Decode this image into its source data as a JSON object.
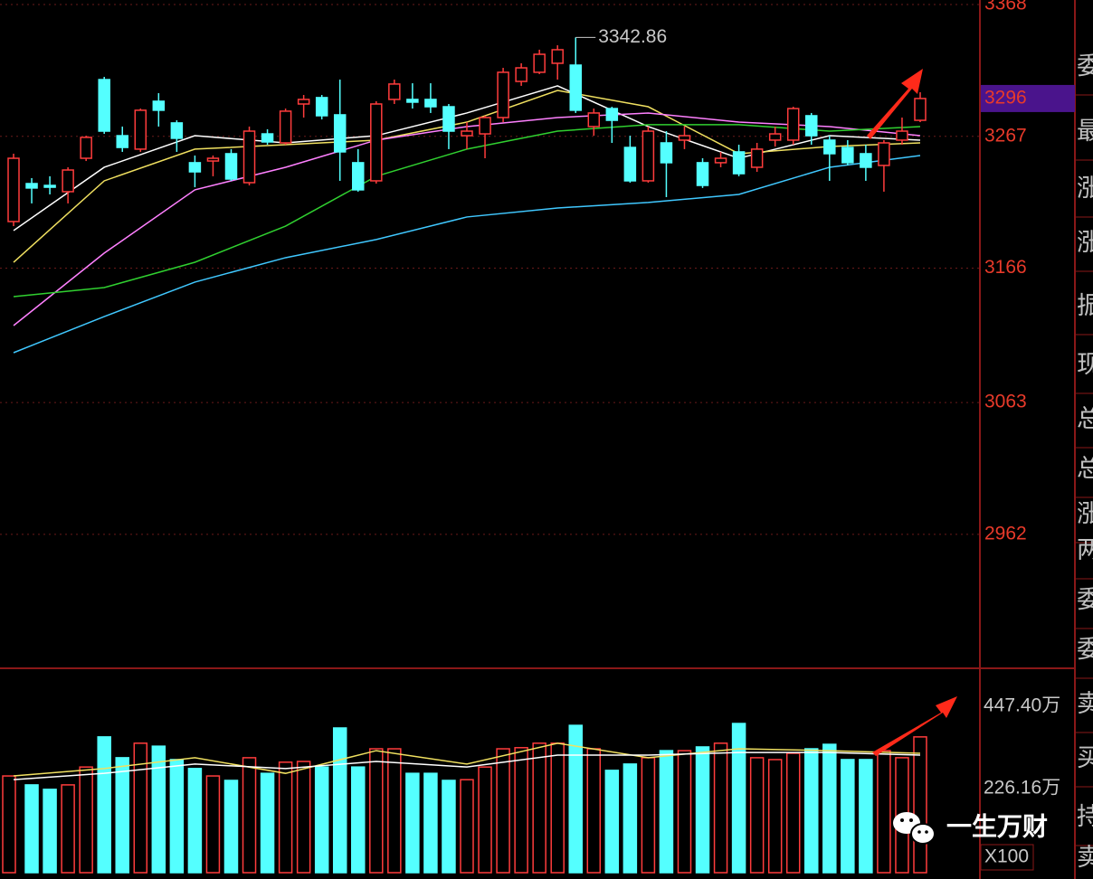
{
  "chart_data": [
    {
      "type": "candlestick",
      "open": [
        3201.7,
        3230.8,
        3229.4,
        3224.6,
        3250.2,
        3310.5,
        3267.5,
        3257.2,
        3293.9,
        3277.3,
        3246.8,
        3248.1,
        3253.7,
        3231.5,
        3268.9,
        3262.0,
        3291.8,
        3296.7,
        3283.5,
        3246.8,
        3232.9,
        3295.3,
        3295.3,
        3295.3,
        3289.7,
        3267.5,
        3268.9,
        3281.4,
        3309.1,
        3316.1,
        3323.0,
        3321.6,
        3274.5,
        3288.3,
        3258.5,
        3232.9,
        3262.0,
        3264.1,
        3246.8,
        3246.8,
        3255.1,
        3243.3,
        3264.1,
        3264.1,
        3282.8,
        3264.1,
        3258.5,
        3253.7,
        3244.7,
        3264.1,
        3279.3
      ],
      "high": [
        3253.7,
        3235.0,
        3236.4,
        3243.3,
        3267.5,
        3312.6,
        3274.5,
        3288.3,
        3300.1,
        3279.3,
        3252.3,
        3252.3,
        3257.2,
        3274.5,
        3272.4,
        3288.3,
        3298.7,
        3298.7,
        3310.5,
        3257.2,
        3293.9,
        3310.5,
        3307.7,
        3307.7,
        3291.8,
        3277.9,
        3282.8,
        3319.5,
        3323.0,
        3333.4,
        3336.8,
        3342.86,
        3288.3,
        3289.7,
        3267.5,
        3274.5,
        3271.0,
        3274.5,
        3250.2,
        3255.1,
        3260.6,
        3262.0,
        3274.5,
        3289.7,
        3284.9,
        3267.5,
        3264.1,
        3260.6,
        3264.1,
        3281.4,
        3300.8
      ],
      "low": [
        3198.2,
        3215.6,
        3222.5,
        3215.6,
        3248.1,
        3268.9,
        3255.1,
        3255.1,
        3274.5,
        3255.1,
        3228.0,
        3236.4,
        3232.9,
        3229.4,
        3260.6,
        3260.6,
        3281.4,
        3280.0,
        3232.9,
        3224.6,
        3230.8,
        3291.8,
        3288.3,
        3284.9,
        3257.2,
        3257.2,
        3250.2,
        3277.9,
        3305.7,
        3314.7,
        3310.5,
        3284.9,
        3267.5,
        3262.0,
        3231.5,
        3231.5,
        3220.4,
        3257.2,
        3227.4,
        3243.3,
        3236.4,
        3239.8,
        3259.2,
        3260.6,
        3260.6,
        3232.9,
        3244.7,
        3232.9,
        3224.6,
        3260.6,
        3277.9
      ],
      "close": [
        3250.2,
        3227.4,
        3228.0,
        3241.2,
        3266.2,
        3271.0,
        3258.5,
        3287.0,
        3287.0,
        3265.5,
        3239.8,
        3250.2,
        3234.3,
        3271.0,
        3262.7,
        3286.3,
        3295.3,
        3282.8,
        3255.1,
        3226.0,
        3291.8,
        3307.1,
        3293.2,
        3289.7,
        3271.0,
        3271.0,
        3281.4,
        3316.1,
        3319.5,
        3329.9,
        3333.4,
        3287.0,
        3284.9,
        3279.3,
        3232.9,
        3271.0,
        3246.8,
        3267.5,
        3229.4,
        3250.2,
        3238.4,
        3257.2,
        3268.9,
        3288.3,
        3267.5,
        3253.7,
        3246.8,
        3243.3,
        3262.0,
        3271.0,
        3296
      ],
      "up_color": "#ff3c3c",
      "down_color": "#54ffff",
      "ylim": [
        2860,
        3371.5
      ],
      "yticks": [
        3368,
        3267,
        3166,
        3063,
        2962
      ],
      "grid": true,
      "last_price": 3296,
      "high_annotation": 3342.86,
      "ma_x": [
        0,
        5,
        10,
        15,
        20,
        25,
        30,
        35,
        40,
        45,
        50
      ],
      "ma_lines": [
        {
          "color": "#ffffff",
          "values": [
            3194.8,
            3243.3,
            3267.5,
            3262.0,
            3267.5,
            3284.9,
            3305.7,
            3274.5,
            3250.2,
            3267.5,
            3264.1
          ]
        },
        {
          "color": "#f0e060",
          "values": [
            3170.5,
            3232.9,
            3257.2,
            3260.6,
            3264.1,
            3277.9,
            3302.2,
            3289.7,
            3253.7,
            3259.2,
            3262.0
          ]
        },
        {
          "color": "#ff80ff",
          "values": [
            3122.0,
            3177.5,
            3226.0,
            3243.3,
            3264.1,
            3274.5,
            3281.4,
            3284.9,
            3277.9,
            3274.5,
            3267.5
          ]
        },
        {
          "color": "#30d030",
          "values": [
            3144.2,
            3151.1,
            3170.5,
            3198.2,
            3236.4,
            3257.2,
            3271.0,
            3275.9,
            3275.9,
            3271.0,
            3274.5
          ]
        },
        {
          "color": "#40c8ff",
          "values": [
            3101.2,
            3128.9,
            3155.3,
            3174.0,
            3187.9,
            3205.2,
            3212.1,
            3216.3,
            3222.5,
            3243.3,
            3252.3
          ]
        }
      ]
    },
    {
      "type": "bar",
      "values": [
        260,
        236,
        224,
        236,
        284,
        365,
        309,
        348,
        340,
        304,
        280,
        260,
        248,
        309,
        267,
        297,
        299,
        284,
        389,
        284,
        333,
        333,
        267,
        267,
        248,
        250,
        284,
        333,
        336,
        348,
        348,
        396,
        333,
        275,
        292,
        309,
        328,
        328,
        338,
        348,
        401,
        309,
        304,
        321,
        333,
        345,
        304,
        304,
        328,
        309,
        365
      ],
      "ylim": [
        0,
        547
      ],
      "yticks": [
        {
          "value": 226.16,
          "label": "226.16万"
        },
        {
          "value": 447.4,
          "label": "447.40万"
        }
      ],
      "unit_label": "X100",
      "ma_x": [
        0,
        5,
        10,
        15,
        20,
        25,
        30,
        35,
        40,
        45,
        50
      ],
      "ma_lines": [
        {
          "color": "#f0e060",
          "values": [
            260,
            280,
            309,
            267,
            328,
            292,
            348,
            309,
            333,
            328,
            321
          ]
        },
        {
          "color": "#ffffff",
          "values": [
            250,
            267,
            292,
            280,
            299,
            284,
            316,
            316,
            323,
            323,
            316
          ]
        }
      ]
    }
  ],
  "sidebar": [
    "委",
    "最",
    "涨",
    "涨",
    "振",
    "现",
    "总",
    "总",
    "涨",
    "两",
    "委",
    "委",
    "卖",
    "买",
    "持",
    "卖"
  ],
  "watermark": "一生万财"
}
